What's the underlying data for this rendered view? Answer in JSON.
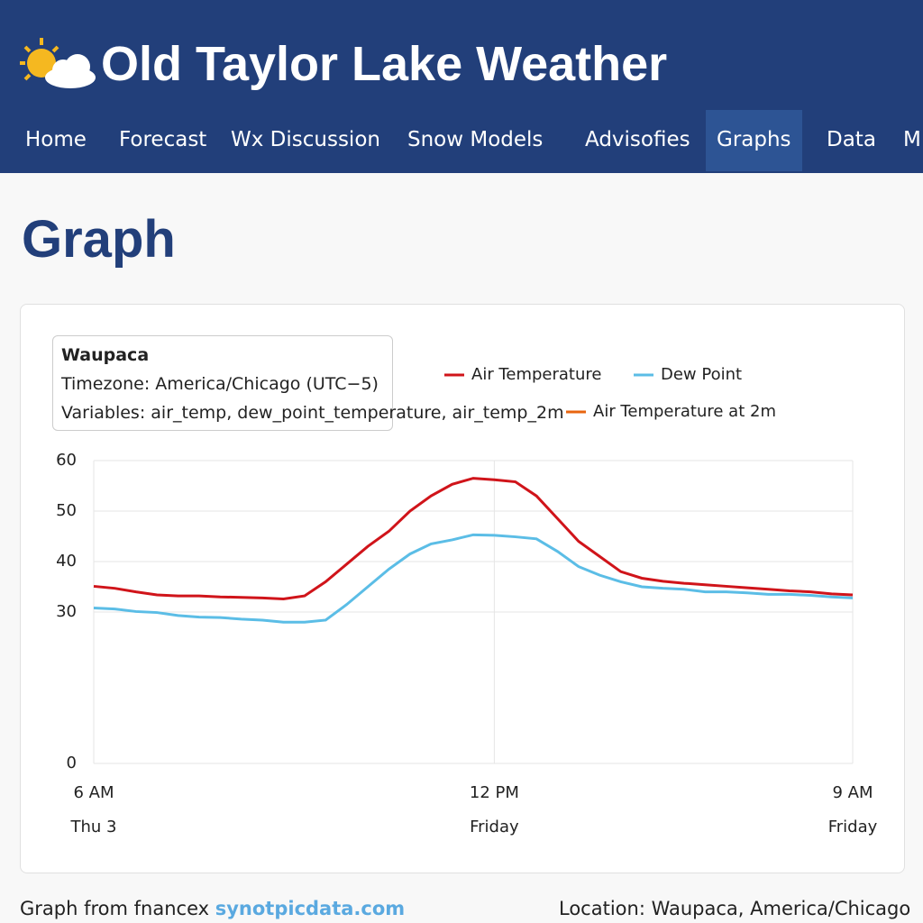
{
  "header": {
    "title": "Old Taylor Lake Weather",
    "nav": [
      "Home",
      "Forecast",
      "Wx Discussion",
      "Snow Models",
      "Advisofies",
      "Graphs",
      "Data",
      "M"
    ],
    "active": "Graphs"
  },
  "heading": "Graph",
  "info": {
    "station": "Waupaca",
    "timezone": "Timezone: America/Chicago (UTC−5)",
    "variables": "Variables: air_temp, dew_point_temperature, air_temp_2m"
  },
  "chart_data": {
    "type": "line",
    "categories": [
      "6 AM",
      null,
      null,
      null,
      null,
      null,
      null,
      null,
      null,
      null,
      null,
      null,
      null,
      null,
      null,
      null,
      null,
      null,
      null,
      "12 PM",
      null,
      null,
      null,
      null,
      null,
      null,
      null,
      null,
      null,
      null,
      null,
      null,
      null,
      null,
      null,
      null,
      "9 AM"
    ],
    "category_dates": [
      "Thu 3",
      null,
      null,
      null,
      null,
      null,
      null,
      null,
      null,
      null,
      null,
      null,
      null,
      null,
      null,
      null,
      null,
      null,
      null,
      "Friday",
      null,
      null,
      null,
      null,
      null,
      null,
      null,
      null,
      null,
      null,
      null,
      null,
      null,
      null,
      null,
      null,
      "Friday"
    ],
    "series": [
      {
        "name": "Air Temperature",
        "color": "#d0141a",
        "values": [
          35.1,
          34.7,
          34,
          33.4,
          33.2,
          33.2,
          33,
          32.9,
          32.8,
          32.6,
          33.2,
          36,
          39.5,
          43,
          46,
          50,
          53,
          55.3,
          56.5,
          56.2,
          55.8,
          53,
          48.5,
          44,
          41,
          38,
          36.7,
          36.1,
          35.7,
          35.4,
          35.1,
          34.8,
          34.5,
          34.2,
          34,
          33.6,
          33.4
        ]
      },
      {
        "name": "Dew Point",
        "color": "#5bbde6",
        "values": [
          30.8,
          30.6,
          30.1,
          29.9,
          29.3,
          29,
          28.9,
          28.6,
          28.4,
          28,
          28,
          28.4,
          31.5,
          35,
          38.5,
          41.5,
          43.5,
          44.3,
          45.3,
          45.2,
          44.9,
          44.5,
          42,
          39,
          37.3,
          36,
          35,
          34.7,
          34.5,
          34,
          34,
          33.8,
          33.5,
          33.5,
          33.3,
          33,
          32.8
        ]
      },
      {
        "name": "Air Temperature at 2m",
        "color": "#e8650f",
        "values": [
          null,
          null,
          null,
          null,
          null,
          null,
          null,
          null,
          null,
          null,
          null,
          null,
          null,
          null,
          null,
          null,
          null,
          null,
          null,
          null,
          null,
          null,
          null,
          null,
          null,
          null,
          null,
          null,
          null,
          null,
          null,
          null,
          null,
          null,
          null,
          null,
          null
        ]
      }
    ],
    "ylim": [
      0,
      60
    ],
    "yticks": [
      0,
      30,
      40,
      50,
      60
    ],
    "grid": true
  },
  "footer": {
    "source": "Graph from fnancex",
    "link": "synotpicdata.com",
    "location": "Location: Waupaca, America/Chicago"
  }
}
